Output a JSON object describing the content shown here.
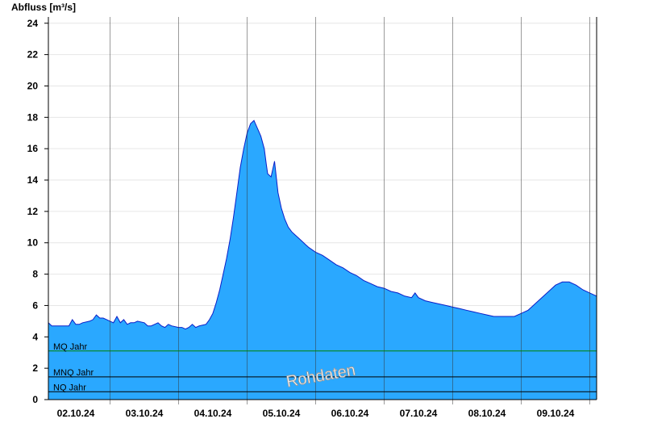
{
  "chart_data": {
    "type": "area",
    "title": "",
    "ylabel": "Abfluss [m³/s]",
    "xlabel": "",
    "ylim": [
      0,
      24.4
    ],
    "yticks": [
      0,
      2,
      4,
      6,
      8,
      10,
      12,
      14,
      16,
      18,
      20,
      22,
      24
    ],
    "x_range_days": [
      1.6,
      9.6
    ],
    "x_ticks": [
      {
        "label": "02.10.24",
        "day": 2
      },
      {
        "label": "03.10.24",
        "day": 3
      },
      {
        "label": "04.10.24",
        "day": 4
      },
      {
        "label": "05.10.24",
        "day": 5
      },
      {
        "label": "06.10.24",
        "day": 6
      },
      {
        "label": "07.10.24",
        "day": 7
      },
      {
        "label": "08.10.24",
        "day": 8
      },
      {
        "label": "09.10.24",
        "day": 9
      }
    ],
    "grid": true,
    "fill_color": "#2aa8ff",
    "line_color": "#0a1ec8",
    "reference_lines": [
      {
        "label": "MQ Jahr",
        "value": 3.1,
        "color": "#008000"
      },
      {
        "label": "MNQ Jahr",
        "value": 1.45,
        "color": "#000000"
      },
      {
        "label": "NQ Jahr",
        "value": 0.5,
        "color": "#000000"
      }
    ],
    "watermark": "Rohdaten",
    "series": [
      {
        "x": [
          1.6,
          1.65,
          1.7,
          1.75,
          1.8,
          1.9,
          1.95,
          2.0,
          2.05,
          2.1,
          2.2,
          2.25,
          2.3,
          2.35,
          2.4,
          2.45,
          2.5,
          2.55,
          2.6,
          2.65,
          2.7,
          2.75,
          2.8,
          2.85,
          2.9,
          3.0,
          3.05,
          3.1,
          3.15,
          3.2,
          3.25,
          3.3,
          3.35,
          3.4,
          3.5,
          3.55,
          3.6,
          3.65,
          3.7,
          3.75,
          3.8,
          3.9,
          3.95,
          4.0,
          4.05,
          4.1,
          4.15,
          4.2,
          4.25,
          4.3,
          4.35,
          4.4,
          4.45,
          4.5,
          4.55,
          4.6,
          4.65,
          4.7,
          4.75,
          4.78,
          4.8,
          4.85,
          4.9,
          4.95,
          5.0,
          5.05,
          5.1,
          5.15,
          5.2,
          5.25,
          5.3,
          5.35,
          5.4,
          5.5,
          5.6,
          5.7,
          5.8,
          5.9,
          6.0,
          6.1,
          6.2,
          6.3,
          6.4,
          6.5,
          6.6,
          6.7,
          6.8,
          6.9,
          6.95,
          7.0,
          7.1,
          7.2,
          7.3,
          7.4,
          7.5,
          7.6,
          7.7,
          7.8,
          7.9,
          8.0,
          8.1,
          8.2,
          8.3,
          8.4,
          8.5,
          8.6,
          8.7,
          8.8,
          8.9,
          9.0,
          9.1,
          9.2,
          9.3,
          9.4,
          9.5,
          9.6
        ],
        "values": [
          4.9,
          4.7,
          4.7,
          4.7,
          4.7,
          4.7,
          5.1,
          4.8,
          4.8,
          4.9,
          5.0,
          5.1,
          5.4,
          5.2,
          5.2,
          5.1,
          5.0,
          4.9,
          5.3,
          4.9,
          5.1,
          4.8,
          4.9,
          4.9,
          5.0,
          4.9,
          4.7,
          4.7,
          4.8,
          4.9,
          4.7,
          4.6,
          4.8,
          4.7,
          4.6,
          4.6,
          4.5,
          4.6,
          4.8,
          4.6,
          4.7,
          4.8,
          5.1,
          5.5,
          6.2,
          7.0,
          8.0,
          9.0,
          10.2,
          11.6,
          13.2,
          14.8,
          16.0,
          17.0,
          17.6,
          17.8,
          17.3,
          16.8,
          16.0,
          15.0,
          14.4,
          14.2,
          15.2,
          13.2,
          12.2,
          11.5,
          11.0,
          10.7,
          10.5,
          10.3,
          10.1,
          9.9,
          9.7,
          9.4,
          9.2,
          8.9,
          8.6,
          8.4,
          8.1,
          7.9,
          7.6,
          7.4,
          7.2,
          7.1,
          6.9,
          6.8,
          6.6,
          6.5,
          6.8,
          6.5,
          6.3,
          6.2,
          6.1,
          6.0,
          5.9,
          5.8,
          5.7,
          5.6,
          5.5,
          5.4,
          5.3,
          5.3,
          5.3,
          5.3,
          5.5,
          5.7,
          6.1,
          6.5,
          6.9,
          7.3,
          7.5,
          7.5,
          7.3,
          7.0,
          6.8,
          6.6
        ]
      }
    ]
  }
}
